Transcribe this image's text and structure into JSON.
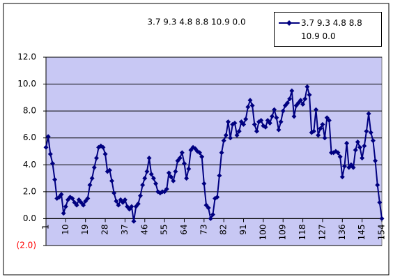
{
  "chart_data": {
    "type": "line",
    "title": "3.7 9.3 4.8 8.8 10.9 0.0",
    "x": [
      1,
      2,
      3,
      4,
      5,
      6,
      7,
      8,
      9,
      10,
      11,
      12,
      13,
      14,
      15,
      16,
      17,
      18,
      19,
      20,
      21,
      22,
      23,
      24,
      25,
      26,
      27,
      28,
      29,
      30,
      31,
      32,
      33,
      34,
      35,
      36,
      37,
      38,
      39,
      40,
      41,
      42,
      43,
      44,
      45,
      46,
      47,
      48,
      49,
      50,
      51,
      52,
      53,
      54,
      55,
      56,
      57,
      58,
      59,
      60,
      61,
      62,
      63,
      64,
      65,
      66,
      67,
      68,
      69,
      70,
      71,
      72,
      73,
      74,
      75,
      76,
      77,
      78,
      79,
      80,
      81,
      82,
      83,
      84,
      85,
      86,
      87,
      88,
      89,
      90,
      91,
      92,
      93,
      94,
      95,
      96,
      97,
      98,
      99,
      100,
      101,
      102,
      103,
      104,
      105,
      106,
      107,
      108,
      109,
      110,
      111,
      112,
      113,
      114,
      115,
      116,
      117,
      118,
      119,
      120,
      121,
      122,
      123,
      124,
      125,
      126,
      127,
      128,
      129,
      130,
      131,
      132,
      133,
      134,
      135,
      136,
      137,
      138,
      139,
      140,
      141,
      142,
      143,
      144,
      145,
      146,
      147,
      148,
      149,
      150,
      151,
      152,
      153,
      154
    ],
    "series": [
      {
        "name": "3.7 9.3 4.8 8.8 10.9 0.0",
        "color": "#000080",
        "values": [
          5.3,
          6.1,
          4.8,
          4.1,
          2.9,
          1.5,
          1.6,
          1.8,
          0.4,
          0.9,
          1.4,
          1.6,
          1.5,
          1.2,
          1.0,
          1.4,
          1.2,
          1.0,
          1.3,
          1.5,
          2.5,
          3.0,
          3.8,
          4.5,
          5.3,
          5.4,
          5.3,
          4.8,
          3.5,
          3.6,
          2.8,
          1.9,
          1.3,
          1.0,
          1.4,
          1.2,
          1.4,
          0.9,
          0.7,
          0.9,
          -0.2,
          0.9,
          1.1,
          1.7,
          2.5,
          3.0,
          3.5,
          4.5,
          3.3,
          3.0,
          2.6,
          2.0,
          1.9,
          2.0,
          2.0,
          2.2,
          3.4,
          3.1,
          2.8,
          3.5,
          4.3,
          4.5,
          4.9,
          4.1,
          3.0,
          3.7,
          5.1,
          5.3,
          5.2,
          5.0,
          4.9,
          4.6,
          2.6,
          1.0,
          0.8,
          0.0,
          0.3,
          1.5,
          1.6,
          3.2,
          4.9,
          5.8,
          6.2,
          7.2,
          6.0,
          7.0,
          7.1,
          6.2,
          6.5,
          7.2,
          7.0,
          7.4,
          8.3,
          8.8,
          8.4,
          7.0,
          6.5,
          7.2,
          7.3,
          6.9,
          6.8,
          7.3,
          7.1,
          7.6,
          8.1,
          7.5,
          6.6,
          7.2,
          8.0,
          8.4,
          8.6,
          8.9,
          9.5,
          7.6,
          8.4,
          8.6,
          8.8,
          8.5,
          8.9,
          9.8,
          9.2,
          6.4,
          6.5,
          8.1,
          6.2,
          6.7,
          7.0,
          6.0,
          7.5,
          7.3,
          4.9,
          4.9,
          5.0,
          4.9,
          4.6,
          3.1,
          3.9,
          5.6,
          3.8,
          4.0,
          3.8,
          5.1,
          5.7,
          5.3,
          4.5,
          5.4,
          6.5,
          7.8,
          6.4,
          5.8,
          4.3,
          2.5,
          1.2,
          0.0
        ]
      }
    ],
    "xlim": [
      1,
      154
    ],
    "xticks": [
      1,
      10,
      19,
      28,
      37,
      46,
      55,
      64,
      73,
      82,
      91,
      100,
      109,
      118,
      127,
      136,
      145,
      154
    ],
    "ylim": [
      -2,
      12
    ],
    "yticks": [
      {
        "value": -2,
        "label": "(2.0)"
      },
      {
        "value": 0,
        "label": "0.0"
      },
      {
        "value": 2,
        "label": "2.0"
      },
      {
        "value": 4,
        "label": "4.0"
      },
      {
        "value": 6,
        "label": "6.0"
      },
      {
        "value": 8,
        "label": "8.0"
      },
      {
        "value": 10,
        "label": "10.0"
      },
      {
        "value": 12,
        "label": "12.0"
      }
    ],
    "negative_tick_color": "#ff0000",
    "grid": true,
    "plot_background": "#c8c8f4",
    "legend": "top-right"
  }
}
